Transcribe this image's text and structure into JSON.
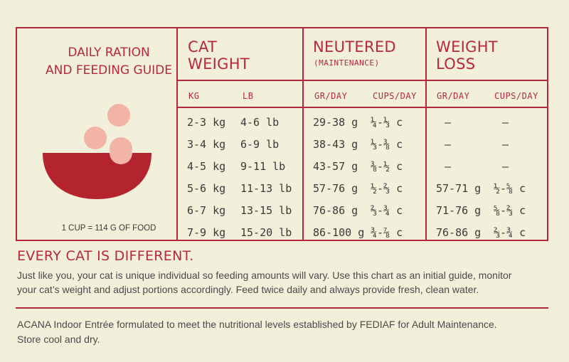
{
  "guide": {
    "title_line1": "DAILY RATION",
    "title_line2": "AND FEEDING GUIDE",
    "cup_note": "1 CUP = 114 G OF FOOD",
    "colors": {
      "accent": "#b8283a",
      "bowl": "#b3242f",
      "kibble": "#f2b4a6",
      "background": "#f2efda"
    }
  },
  "table": {
    "cat_weight_line1": "CAT",
    "cat_weight_line2": "WEIGHT",
    "neutered_title": "NEUTERED",
    "neutered_sub": "(MAINTENANCE)",
    "loss_line1": "WEIGHT",
    "loss_line2": "LOSS",
    "col_kg": "KG",
    "col_lb": "LB",
    "col_gr1": "GR/DAY",
    "col_cups1": "CUPS/DAY",
    "col_gr2": "GR/DAY",
    "col_cups2": "CUPS/DAY",
    "rows": [
      {
        "kg": "2-3 kg",
        "lb": "4-6 lb",
        "gr": "29-38 g",
        "cups": "¼-⅓ c",
        "loss_gr": "—",
        "loss_cups": "—"
      },
      {
        "kg": "3-4 kg",
        "lb": "6-9 lb",
        "gr": "38-43 g",
        "cups": "⅓-⅜ c",
        "loss_gr": "—",
        "loss_cups": "—"
      },
      {
        "kg": "4-5 kg",
        "lb": "9-11 lb",
        "gr": "43-57 g",
        "cups": "⅜-½ c",
        "loss_gr": "—",
        "loss_cups": "—"
      },
      {
        "kg": "5-6 kg",
        "lb": "11-13 lb",
        "gr": "57-76 g",
        "cups": "½-⅔ c",
        "loss_gr": "57-71 g",
        "loss_cups": "½-⅝ c"
      },
      {
        "kg": "6-7 kg",
        "lb": "13-15 lb",
        "gr": "76-86 g",
        "cups": "⅔-¾ c",
        "loss_gr": "71-76 g",
        "loss_cups": "⅝-⅔ c"
      },
      {
        "kg": "7-9 kg",
        "lb": "15-20 lb",
        "gr": "86-100 g",
        "cups": "¾-⅞ c",
        "loss_gr": "76-86 g",
        "loss_cups": "⅔-¾ c"
      }
    ]
  },
  "notes": {
    "heading": "EVERY CAT IS DIFFERENT.",
    "paragraph_line1": "Just like you, your cat is unique individual so feeding amounts will vary. Use this chart as an initial guide, monitor",
    "paragraph_line2": "your cat’s weight and adjust portions accordingly. Feed twice daily and always provide fresh, clean water.",
    "footer_line1": "ACANA Indoor Entrée formulated to meet the nutritional levels established by FEDIAF  for Adult Maintenance.",
    "footer_line2": "Store cool and dry."
  }
}
